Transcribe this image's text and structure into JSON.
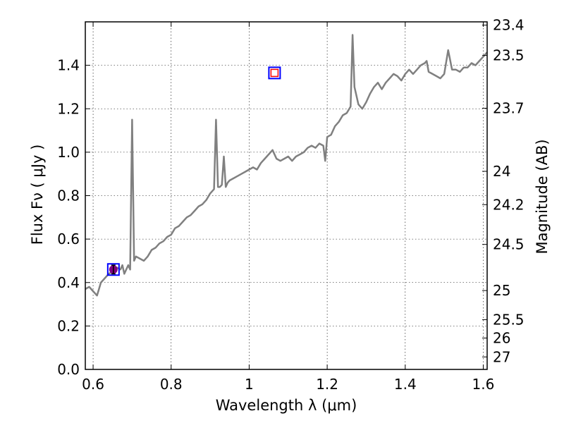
{
  "chart_data": {
    "type": "line",
    "xlabel": "Wavelength  λ (μm)",
    "ylabel": "Flux  Fν  ( μJy )",
    "y2label": "Magnitude (AB)",
    "xlim": [
      0.58,
      1.61
    ],
    "ylim": [
      0.0,
      1.6
    ],
    "grid": true,
    "x_ticks": [
      0.6,
      0.8,
      1.0,
      1.2,
      1.4,
      1.6
    ],
    "x_tick_labels": [
      "0.6",
      "0.8",
      "1",
      "1.2",
      "1.4",
      "1.6"
    ],
    "y_ticks": [
      0.0,
      0.2,
      0.4,
      0.6,
      0.8,
      1.0,
      1.2,
      1.4
    ],
    "y_tick_labels": [
      "0.0",
      "0.2",
      "0.4",
      "0.6",
      "0.8",
      "1.0",
      "1.2",
      "1.4"
    ],
    "y2_tick_labels": [
      "23.4",
      "23.5",
      "23.7",
      "24",
      "24.2",
      "24.5",
      "25",
      "25.5",
      "26",
      "27"
    ],
    "series": [
      {
        "color": "#808080",
        "x": [
          0.58,
          0.59,
          0.6,
          0.61,
          0.615,
          0.62,
          0.63,
          0.64,
          0.65,
          0.66,
          0.67,
          0.675,
          0.68,
          0.69,
          0.695,
          0.7,
          0.705,
          0.71,
          0.72,
          0.73,
          0.74,
          0.75,
          0.76,
          0.77,
          0.78,
          0.79,
          0.8,
          0.81,
          0.82,
          0.83,
          0.84,
          0.85,
          0.86,
          0.87,
          0.88,
          0.89,
          0.9,
          0.91,
          0.915,
          0.92,
          0.925,
          0.93,
          0.935,
          0.94,
          0.945,
          0.95,
          0.96,
          0.97,
          0.98,
          0.99,
          1.0,
          1.01,
          1.02,
          1.03,
          1.04,
          1.05,
          1.06,
          1.07,
          1.08,
          1.09,
          1.1,
          1.11,
          1.12,
          1.13,
          1.14,
          1.15,
          1.16,
          1.17,
          1.18,
          1.19,
          1.195,
          1.2,
          1.21,
          1.22,
          1.23,
          1.24,
          1.25,
          1.26,
          1.265,
          1.27,
          1.28,
          1.29,
          1.3,
          1.31,
          1.32,
          1.33,
          1.34,
          1.35,
          1.36,
          1.37,
          1.38,
          1.39,
          1.4,
          1.41,
          1.42,
          1.43,
          1.44,
          1.45,
          1.455,
          1.46,
          1.47,
          1.48,
          1.49,
          1.5,
          1.51,
          1.52,
          1.53,
          1.54,
          1.55,
          1.56,
          1.57,
          1.58,
          1.59,
          1.6,
          1.61
        ],
        "y": [
          0.37,
          0.38,
          0.36,
          0.34,
          0.37,
          0.4,
          0.42,
          0.44,
          0.45,
          0.47,
          0.46,
          0.48,
          0.44,
          0.48,
          0.46,
          1.15,
          0.5,
          0.52,
          0.51,
          0.5,
          0.52,
          0.55,
          0.56,
          0.58,
          0.59,
          0.61,
          0.62,
          0.65,
          0.66,
          0.68,
          0.7,
          0.71,
          0.73,
          0.75,
          0.76,
          0.78,
          0.81,
          0.83,
          1.15,
          0.84,
          0.84,
          0.85,
          0.98,
          0.84,
          0.86,
          0.87,
          0.88,
          0.89,
          0.9,
          0.91,
          0.92,
          0.93,
          0.92,
          0.95,
          0.97,
          0.99,
          1.01,
          0.97,
          0.96,
          0.97,
          0.98,
          0.96,
          0.98,
          0.99,
          1.0,
          1.02,
          1.03,
          1.02,
          1.04,
          1.03,
          0.96,
          1.07,
          1.08,
          1.12,
          1.14,
          1.17,
          1.18,
          1.21,
          1.54,
          1.3,
          1.22,
          1.2,
          1.23,
          1.27,
          1.3,
          1.32,
          1.29,
          1.32,
          1.34,
          1.36,
          1.35,
          1.33,
          1.36,
          1.38,
          1.36,
          1.38,
          1.4,
          1.41,
          1.42,
          1.37,
          1.36,
          1.35,
          1.34,
          1.36,
          1.47,
          1.38,
          1.38,
          1.37,
          1.39,
          1.39,
          1.41,
          1.4,
          1.42,
          1.44,
          1.46
        ]
      }
    ],
    "markers": [
      {
        "x": 0.652,
        "y": 0.46,
        "yerr": 0.02,
        "box_color": "#0000ff",
        "fill_color": "#800080",
        "style": "filled-circle-in-square"
      },
      {
        "x": 1.065,
        "y": 1.365,
        "box_color": "#0000ff",
        "fill_color": "#ff0000",
        "style": "hollow-square-in-square"
      }
    ]
  }
}
